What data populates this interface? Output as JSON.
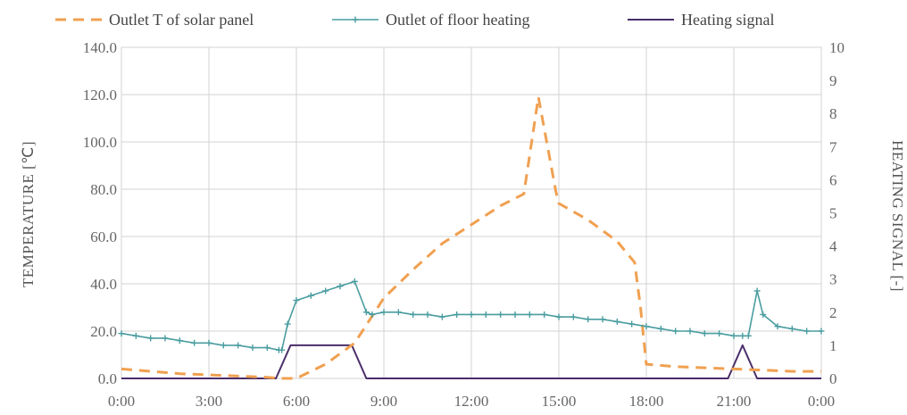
{
  "chart_data": {
    "type": "line",
    "legend_position": "top",
    "grid": true,
    "x_axis": {
      "ticks": [
        "0:00",
        "3:00",
        "6:00",
        "9:00",
        "12:00",
        "15:00",
        "18:00",
        "21:00",
        "0:00"
      ],
      "range_hours": [
        0,
        24
      ]
    },
    "y_left": {
      "label": "TEMPERATURE [℃]",
      "range": [
        0,
        140
      ],
      "ticks": [
        "0.0",
        "20.0",
        "40.0",
        "60.0",
        "80.0",
        "100.0",
        "120.0",
        "140.0"
      ]
    },
    "y_right": {
      "label": "HEATING SIGNAL [-]",
      "range": [
        0,
        10
      ],
      "ticks": [
        "0",
        "1",
        "2",
        "3",
        "4",
        "5",
        "6",
        "7",
        "8",
        "9",
        "10"
      ]
    },
    "series": [
      {
        "name": "Outlet T of solar panel",
        "axis": "left",
        "color": "#f0a050",
        "style": "dashed",
        "x": [
          0,
          1,
          2,
          3,
          4,
          5,
          5.5,
          6,
          7,
          8,
          9,
          10,
          11,
          12,
          13,
          13.8,
          14.3,
          14.9,
          15,
          16,
          17,
          17.6,
          17.8,
          18,
          19,
          20,
          21,
          22,
          23,
          24
        ],
        "y": [
          4,
          3,
          2,
          1.5,
          1,
          0.5,
          0,
          0,
          6,
          15,
          34,
          46,
          57,
          65,
          73,
          78,
          119,
          79,
          74,
          67,
          58,
          49,
          30,
          6,
          5,
          4.5,
          4,
          3.5,
          3,
          3
        ]
      },
      {
        "name": "Outlet of floor heating",
        "axis": "left",
        "color": "#4a9da0",
        "style": "solid-with-markers",
        "x": [
          0,
          0.5,
          1,
          1.5,
          2,
          2.5,
          3,
          3.5,
          4,
          4.5,
          5,
          5.4,
          5.5,
          5.7,
          6,
          6.5,
          7,
          7.5,
          8,
          8.4,
          8.6,
          9,
          9.5,
          10,
          10.5,
          11,
          11.5,
          12,
          12.5,
          13,
          13.5,
          14,
          14.5,
          15,
          15.5,
          16,
          16.5,
          17,
          17.5,
          18,
          18.5,
          19,
          19.5,
          20,
          20.5,
          21,
          21.3,
          21.5,
          21.8,
          22,
          22.5,
          23,
          23.5,
          24
        ],
        "y": [
          19,
          18,
          17,
          17,
          16,
          15,
          15,
          14,
          14,
          13,
          13,
          12,
          12,
          23,
          33,
          35,
          37,
          39,
          41,
          28,
          27,
          28,
          28,
          27,
          27,
          26,
          27,
          27,
          27,
          27,
          27,
          27,
          27,
          26,
          26,
          25,
          25,
          24,
          23,
          22,
          21,
          20,
          20,
          19,
          19,
          18,
          18,
          18,
          37,
          27,
          22,
          21,
          20,
          20
        ]
      },
      {
        "name": "Heating signal",
        "axis": "right",
        "color": "#4a2d6a",
        "style": "solid",
        "x": [
          0,
          5.3,
          5.8,
          7.9,
          8.4,
          20.8,
          21.3,
          21.8,
          24
        ],
        "y": [
          0,
          0,
          1,
          1,
          0,
          0,
          1,
          0,
          0
        ]
      }
    ]
  }
}
